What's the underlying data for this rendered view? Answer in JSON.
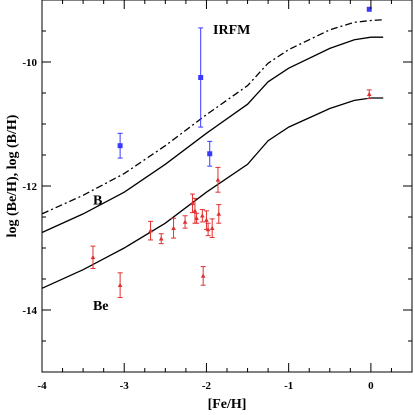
{
  "chart_data": {
    "type": "scatter",
    "xlabel": "[Fe/H]",
    "ylabel": "log (Be/H),  log (B/H)",
    "xlim": [
      -4,
      0.5
    ],
    "ylim": [
      -15,
      -9
    ],
    "xticks": [
      -4,
      -3,
      -2,
      -1,
      0
    ],
    "yticks": [
      -14,
      -12,
      -10
    ],
    "annotations": [
      {
        "text": "IRFM",
        "x": -1.92,
        "y": -9.55
      },
      {
        "text": "B",
        "x": -3.38,
        "y": -12.3
      },
      {
        "text": "Be",
        "x": -3.38,
        "y": -14.0
      }
    ],
    "curves": [
      {
        "name": "B",
        "style": "dashdot",
        "points": [
          [
            -4,
            -12.45
          ],
          [
            -3.5,
            -12.15
          ],
          [
            -3,
            -11.8
          ],
          [
            -2.5,
            -11.35
          ],
          [
            -2,
            -10.85
          ],
          [
            -1.5,
            -10.38
          ],
          [
            -1.25,
            -10.02
          ],
          [
            -1,
            -9.8
          ],
          [
            -0.5,
            -9.48
          ],
          [
            -0.2,
            -9.36
          ],
          [
            0,
            -9.33
          ],
          [
            0.15,
            -9.32
          ]
        ]
      },
      {
        "name": "B",
        "style": "solid",
        "points": [
          [
            -4,
            -12.75
          ],
          [
            -3.5,
            -12.45
          ],
          [
            -3,
            -12.1
          ],
          [
            -2.5,
            -11.65
          ],
          [
            -2,
            -11.15
          ],
          [
            -1.5,
            -10.68
          ],
          [
            -1.25,
            -10.32
          ],
          [
            -1,
            -10.1
          ],
          [
            -0.5,
            -9.78
          ],
          [
            -0.2,
            -9.64
          ],
          [
            0,
            -9.6
          ],
          [
            0.15,
            -9.6
          ]
        ]
      },
      {
        "name": "Be",
        "style": "solid",
        "points": [
          [
            -4,
            -13.65
          ],
          [
            -3.5,
            -13.35
          ],
          [
            -3,
            -13.0
          ],
          [
            -2.5,
            -12.6
          ],
          [
            -2,
            -12.1
          ],
          [
            -1.5,
            -11.65
          ],
          [
            -1.25,
            -11.27
          ],
          [
            -1,
            -11.05
          ],
          [
            -0.5,
            -10.75
          ],
          [
            -0.2,
            -10.62
          ],
          [
            0,
            -10.58
          ],
          [
            0.15,
            -10.58
          ]
        ]
      }
    ],
    "series": [
      {
        "name": "B",
        "color": "#3a3aff",
        "marker": "square",
        "points": [
          {
            "x": -3.05,
            "y": -11.35,
            "err": 0.2
          },
          {
            "x": -2.07,
            "y": -10.25,
            "err": 0.8
          },
          {
            "x": -1.96,
            "y": -11.48,
            "err": 0.2
          },
          {
            "x": -0.02,
            "y": -9.15,
            "err": 0.0
          }
        ]
      },
      {
        "name": "Be",
        "color": "#e03030",
        "marker": "triangle",
        "points": [
          {
            "x": -3.38,
            "y": -13.15,
            "err": 0.18
          },
          {
            "x": -3.05,
            "y": -13.6,
            "err": 0.2
          },
          {
            "x": -2.68,
            "y": -12.72,
            "err": 0.15
          },
          {
            "x": -2.55,
            "y": -12.85,
            "err": 0.08
          },
          {
            "x": -2.4,
            "y": -12.68,
            "err": 0.16
          },
          {
            "x": -2.26,
            "y": -12.58,
            "err": 0.1
          },
          {
            "x": -2.17,
            "y": -12.28,
            "err": 0.15
          },
          {
            "x": -2.14,
            "y": -12.4,
            "err": 0.2
          },
          {
            "x": -2.12,
            "y": -12.52,
            "err": 0.08
          },
          {
            "x": -2.05,
            "y": -12.48,
            "err": 0.1
          },
          {
            "x": -2.04,
            "y": -13.45,
            "err": 0.15
          },
          {
            "x": -2.0,
            "y": -12.55,
            "err": 0.15
          },
          {
            "x": -1.98,
            "y": -12.7,
            "err": 0.1
          },
          {
            "x": -1.93,
            "y": -12.68,
            "err": 0.15
          },
          {
            "x": -1.86,
            "y": -11.9,
            "err": 0.2
          },
          {
            "x": -1.85,
            "y": -12.45,
            "err": 0.15
          },
          {
            "x": -0.02,
            "y": -10.52,
            "err": 0.07
          }
        ]
      }
    ]
  }
}
